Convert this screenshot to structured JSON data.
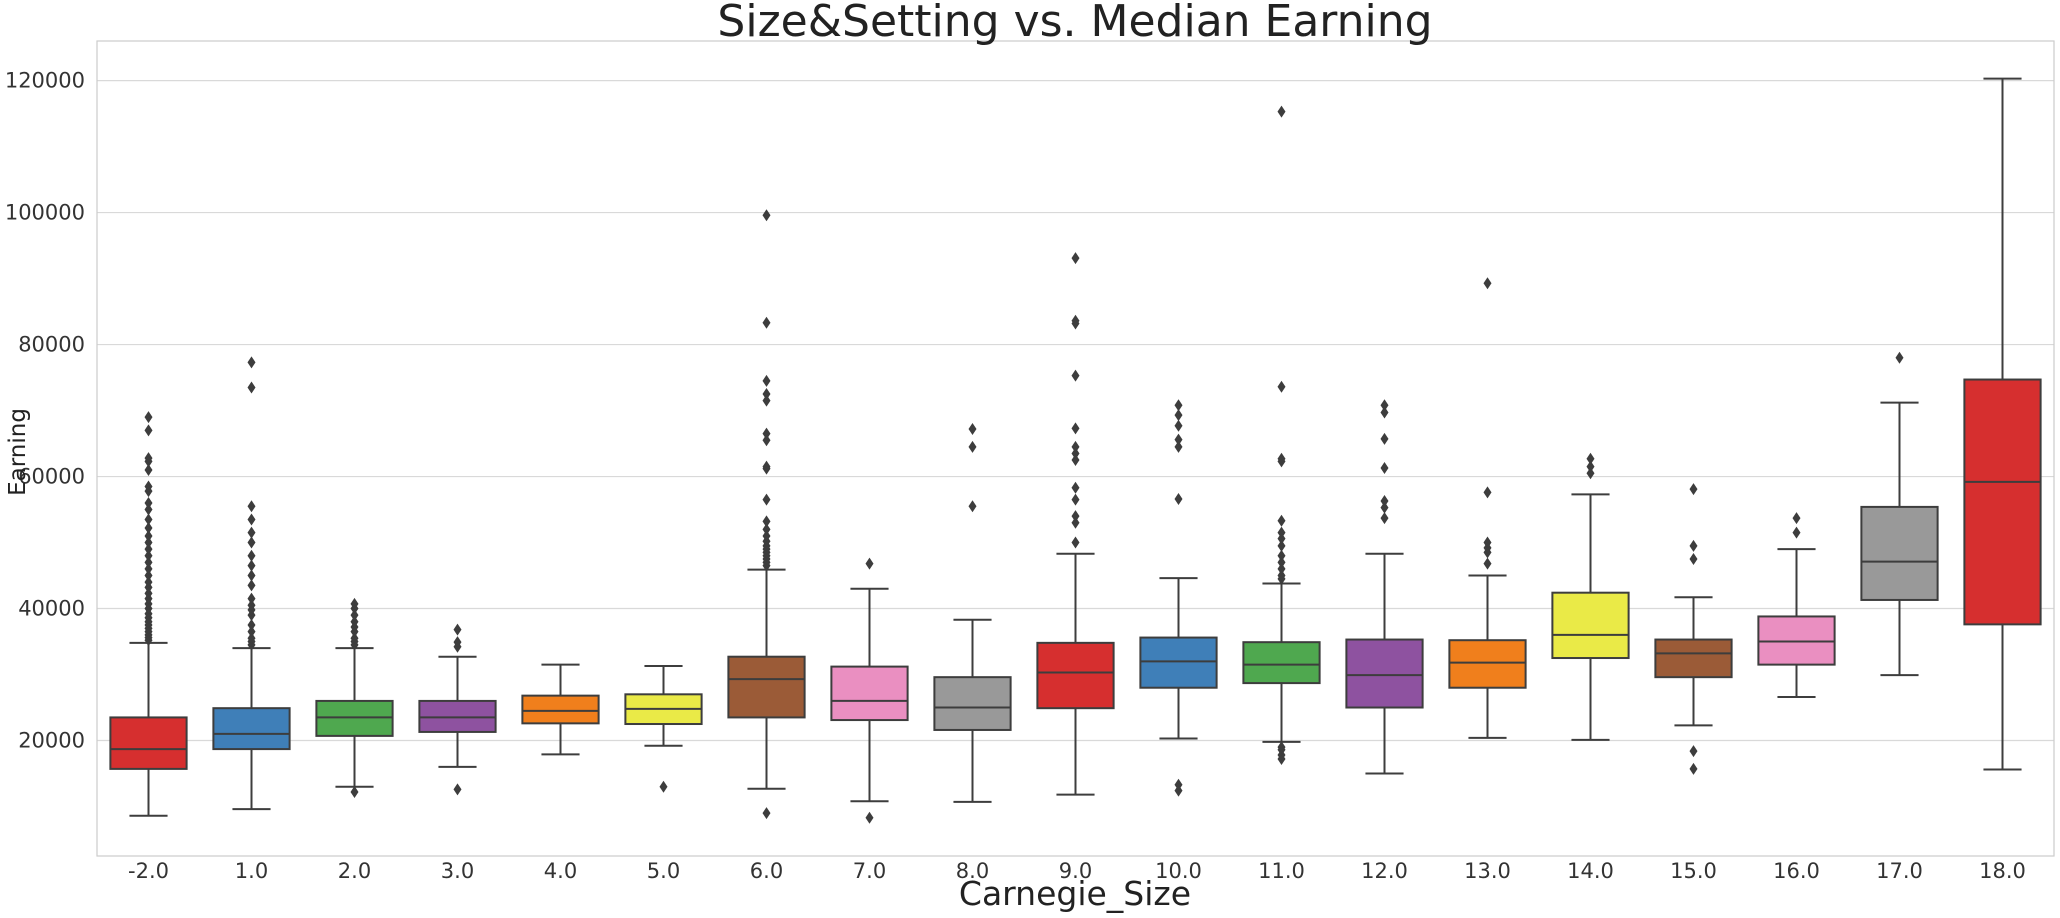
{
  "chart_data": {
    "type": "boxplot",
    "title": "Size&Setting vs. Median Earning",
    "xlabel": "Carnegie_Size",
    "ylabel": "Earning",
    "ylim": [
      2500,
      126000
    ],
    "yticks": [
      20000,
      40000,
      60000,
      80000,
      100000,
      120000
    ],
    "grid": "horizontal",
    "categories": [
      "-2.0",
      "1.0",
      "2.0",
      "3.0",
      "4.0",
      "5.0",
      "6.0",
      "7.0",
      "8.0",
      "9.0",
      "10.0",
      "11.0",
      "12.0",
      "13.0",
      "14.0",
      "15.0",
      "16.0",
      "17.0",
      "18.0"
    ],
    "boxes": [
      {
        "category": "-2.0",
        "color": "#d62f2f",
        "whisker_low": 8600,
        "q1": 15700,
        "median": 18700,
        "q3": 23500,
        "whisker_high": 34800,
        "outliers": [
          35200,
          35600,
          36000,
          36500,
          37000,
          37500,
          38000,
          38600,
          39200,
          40000,
          40700,
          41500,
          42300,
          43200,
          44000,
          45000,
          46000,
          47000,
          48000,
          49000,
          50000,
          51000,
          52200,
          53500,
          55000,
          56000,
          57800,
          58500,
          61000,
          62300,
          62800,
          67000,
          69000
        ]
      },
      {
        "category": "1.0",
        "color": "#3f7fb8",
        "whisker_low": 9600,
        "q1": 18700,
        "median": 21000,
        "q3": 24900,
        "whisker_high": 34000,
        "outliers": [
          34500,
          35000,
          35500,
          36500,
          37500,
          39000,
          39800,
          40500,
          41500,
          43500,
          45000,
          46500,
          48000,
          50000,
          51500,
          53500,
          55500,
          73500,
          77300
        ]
      },
      {
        "category": "2.0",
        "color": "#4fa84f",
        "whisker_low": 13000,
        "q1": 20700,
        "median": 23500,
        "q3": 26000,
        "whisker_high": 34000,
        "outliers": [
          12200,
          34500,
          35000,
          35500,
          36500,
          37200,
          38000,
          39000,
          40000,
          40700
        ]
      },
      {
        "category": "3.0",
        "color": "#8e52a0",
        "whisker_low": 16000,
        "q1": 21300,
        "median": 23500,
        "q3": 26000,
        "whisker_high": 32700,
        "outliers": [
          12600,
          34200,
          34900,
          36800
        ]
      },
      {
        "category": "4.0",
        "color": "#f07f1c",
        "whisker_low": 17900,
        "q1": 22600,
        "median": 24500,
        "q3": 26800,
        "whisker_high": 31500,
        "outliers": []
      },
      {
        "category": "5.0",
        "color": "#eaea47",
        "whisker_low": 19200,
        "q1": 22500,
        "median": 24800,
        "q3": 27000,
        "whisker_high": 31300,
        "outliers": [
          13000
        ]
      },
      {
        "category": "6.0",
        "color": "#9b5b37",
        "whisker_low": 12700,
        "q1": 23500,
        "median": 29300,
        "q3": 32700,
        "whisker_high": 45900,
        "outliers": [
          9000,
          46500,
          47000,
          47500,
          48000,
          48500,
          49000,
          49500,
          50200,
          51000,
          52000,
          53200,
          56500,
          61200,
          61500,
          65500,
          66500,
          71500,
          72500,
          74500,
          83300,
          99600
        ]
      },
      {
        "category": "7.0",
        "color": "#ea8fc1",
        "whisker_low": 10800,
        "q1": 23100,
        "median": 26000,
        "q3": 31200,
        "whisker_high": 43000,
        "outliers": [
          8300,
          46800
        ]
      },
      {
        "category": "8.0",
        "color": "#999999",
        "whisker_low": 10700,
        "q1": 21600,
        "median": 25000,
        "q3": 29600,
        "whisker_high": 38300,
        "outliers": [
          55500,
          64500,
          67200
        ]
      },
      {
        "category": "9.0",
        "color": "#d62f2f",
        "whisker_low": 11800,
        "q1": 24900,
        "median": 30300,
        "q3": 34800,
        "whisker_high": 48300,
        "outliers": [
          50000,
          53000,
          54000,
          56500,
          58300,
          62500,
          63500,
          64500,
          67300,
          75300,
          83200,
          83600,
          93100
        ]
      },
      {
        "category": "10.0",
        "color": "#3f7fb8",
        "whisker_low": 20300,
        "q1": 28000,
        "median": 32000,
        "q3": 35600,
        "whisker_high": 44600,
        "outliers": [
          12400,
          13300,
          56600,
          64500,
          65600,
          67700,
          69300,
          70800
        ]
      },
      {
        "category": "11.0",
        "color": "#4fa84f",
        "whisker_low": 19800,
        "q1": 28700,
        "median": 31500,
        "q3": 34900,
        "whisker_high": 43800,
        "outliers": [
          17200,
          17800,
          18600,
          19000,
          44500,
          45000,
          46000,
          47000,
          48000,
          49500,
          50600,
          51500,
          53300,
          62300,
          62700,
          73600,
          115300
        ]
      },
      {
        "category": "12.0",
        "color": "#8e52a0",
        "whisker_low": 15000,
        "q1": 25000,
        "median": 29900,
        "q3": 35300,
        "whisker_high": 48300,
        "outliers": [
          53700,
          55300,
          56300,
          61300,
          65700,
          69700,
          70800
        ]
      },
      {
        "category": "13.0",
        "color": "#f07f1c",
        "whisker_low": 20400,
        "q1": 28000,
        "median": 31800,
        "q3": 35200,
        "whisker_high": 45000,
        "outliers": [
          46800,
          48500,
          49200,
          50000,
          57600,
          89300
        ]
      },
      {
        "category": "14.0",
        "color": "#eaea47",
        "whisker_low": 20100,
        "q1": 32500,
        "median": 36000,
        "q3": 42400,
        "whisker_high": 57300,
        "outliers": [
          60500,
          61500,
          62700
        ]
      },
      {
        "category": "15.0",
        "color": "#9b5b37",
        "whisker_low": 22300,
        "q1": 29600,
        "median": 33200,
        "q3": 35300,
        "whisker_high": 41700,
        "outliers": [
          15700,
          18400,
          47500,
          49500,
          58100
        ]
      },
      {
        "category": "16.0",
        "color": "#ea8fc1",
        "whisker_low": 26600,
        "q1": 31500,
        "median": 35000,
        "q3": 38800,
        "whisker_high": 49000,
        "outliers": [
          51500,
          53700
        ]
      },
      {
        "category": "17.0",
        "color": "#999999",
        "whisker_low": 29900,
        "q1": 41300,
        "median": 47100,
        "q3": 55400,
        "whisker_high": 71200,
        "outliers": [
          78000
        ]
      },
      {
        "category": "18.0",
        "color": "#d62f2f",
        "whisker_low": 15600,
        "q1": 37600,
        "median": 59200,
        "q3": 74700,
        "whisker_high": 120300,
        "outliers": []
      }
    ]
  }
}
